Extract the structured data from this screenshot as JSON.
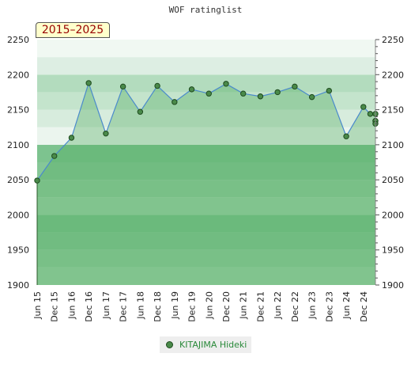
{
  "chart_data": {
    "type": "area",
    "title": "WOF ratinglist",
    "period_label": "2015–2025",
    "ylim": [
      1900,
      2250
    ],
    "y_ticks": [
      1900,
      1950,
      2000,
      2050,
      2100,
      2150,
      2200,
      2250
    ],
    "x_tick_labels": [
      "Jun 15",
      "Dec 15",
      "Jun 16",
      "Dec 16",
      "Jun 17",
      "Dec 17",
      "Jun 18",
      "Dec 18",
      "Jun 19",
      "Dec 19",
      "Jun 20",
      "Dec 20",
      "Jun 21",
      "Dec 21",
      "Jun 22",
      "Dec 22",
      "Jun 23",
      "Dec 23",
      "Jun 24",
      "Dec 24"
    ],
    "series": [
      {
        "name": "KITAJIMA Hideki",
        "points": [
          {
            "x": "Jun 15",
            "y": 2049
          },
          {
            "x": "Dec 15",
            "y": 2084
          },
          {
            "x": "Jun 16",
            "y": 2110
          },
          {
            "x": "Dec 16",
            "y": 2188
          },
          {
            "x": "Jun 17",
            "y": 2116
          },
          {
            "x": "Dec 17",
            "y": 2183
          },
          {
            "x": "Jun 18",
            "y": 2147
          },
          {
            "x": "Dec 18",
            "y": 2184
          },
          {
            "x": "Jun 19",
            "y": 2161
          },
          {
            "x": "Dec 19",
            "y": 2179
          },
          {
            "x": "Jun 20",
            "y": 2173
          },
          {
            "x": "Dec 20",
            "y": 2187
          },
          {
            "x": "Jun 21",
            "y": 2173
          },
          {
            "x": "Dec 21",
            "y": 2169
          },
          {
            "x": "Jun 22",
            "y": 2175
          },
          {
            "x": "Dec 22",
            "y": 2183
          },
          {
            "x": "Jun 23",
            "y": 2168
          },
          {
            "x": "Dec 23",
            "y": 2177
          },
          {
            "x": "Jun 24",
            "y": 2112
          },
          {
            "x": "Dec 24",
            "y": 2154
          },
          {
            "x": "Dec 24",
            "y": 2144
          },
          {
            "x": "Dec 24",
            "y": 2144
          },
          {
            "x": "Dec 24",
            "y": 2134
          },
          {
            "x": "Dec 24",
            "y": 2134
          },
          {
            "x": "Dec 24",
            "y": 2130
          }
        ]
      }
    ],
    "legend_position": "bottom-center",
    "grid": false,
    "colors": {
      "area_fill": "#4aaa5a",
      "line": "#4a8acc",
      "marker_fill": "#4a8a4a",
      "marker_stroke": "#1e4a1e",
      "legend_text": "#2a8a3a",
      "period_text": "#990000",
      "period_bg": "#ffffcc"
    }
  }
}
